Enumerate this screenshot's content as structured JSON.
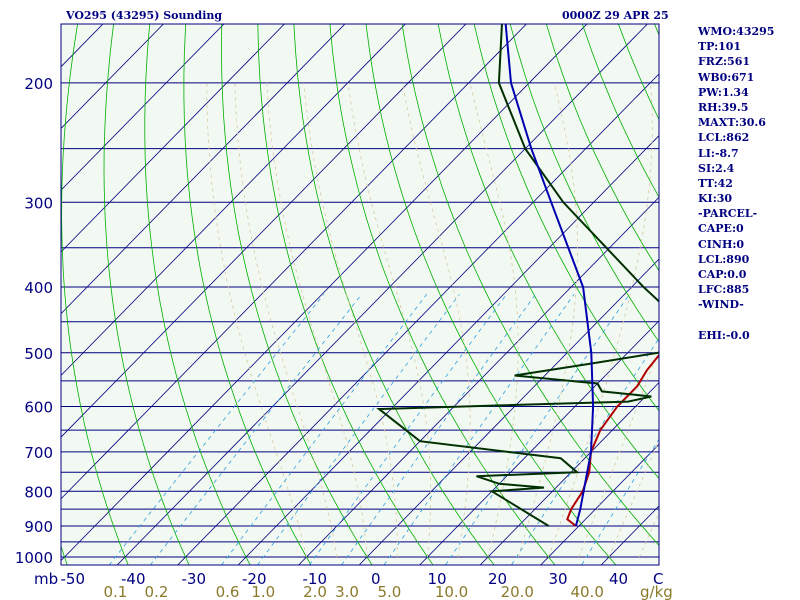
{
  "header": {
    "title": "VO295 (43295) Sounding",
    "timestamp": "0000Z 29 APR 25"
  },
  "stats": [
    "WMO:43295",
    "TP:101",
    "FRZ:561",
    "WB0:671",
    "PW:1.34",
    "RH:39.5",
    "MAXT:30.6",
    "LCL:862",
    "LI:-8.7",
    "SI:2.4",
    "TT:42",
    "KI:30",
    "-PARCEL-",
    "CAPE:0",
    "CINH:0",
    "LCL:890",
    "CAP:0.0",
    "LFC:885",
    "-WIND-",
    "",
    "EHI:-0.0"
  ],
  "colors": {
    "background": "#f2f8f2",
    "isobar": "#000080",
    "isotherm": "#000080",
    "dry_adiabat": "#00b000",
    "moist_adiabat": "#d8c8a0",
    "mixing_ratio": "#30a0e0",
    "temperature": "#b00000",
    "dewpoint": "#003000",
    "parcel": "#0000b0"
  },
  "chart_data": {
    "type": "skew-t log-p",
    "pressure_unit": "mb",
    "pressure_range": [
      1000,
      100
    ],
    "pressure_ticks": [
      "100",
      "200",
      "300",
      "400",
      "500",
      "600",
      "700",
      "800",
      "900",
      "1000"
    ],
    "temperature_unit": "C",
    "temperature_ticks": [
      "-50",
      "-40",
      "-30",
      "-20",
      "-10",
      "0",
      "10",
      "20",
      "30",
      "40"
    ],
    "mixing_ratio_unit": "g/kg",
    "mixing_ratio_ticks": [
      "0.1",
      "0.2",
      "0.6",
      "1.0",
      "2.0",
      "3.0",
      "5.0",
      "10.0",
      "20.0",
      "40.0"
    ],
    "series": [
      {
        "role": "temperature",
        "points": [
          {
            "p": 900,
            "t": 29.5
          },
          {
            "p": 880,
            "t": 27
          },
          {
            "p": 850,
            "t": 26
          },
          {
            "p": 800,
            "t": 25
          },
          {
            "p": 750,
            "t": 23
          },
          {
            "p": 700,
            "t": 20
          },
          {
            "p": 650,
            "t": 18
          },
          {
            "p": 600,
            "t": 17
          },
          {
            "p": 560,
            "t": 17
          },
          {
            "p": 530,
            "t": 16
          },
          {
            "p": 500,
            "t": 15.5
          },
          {
            "p": 470,
            "t": 16
          }
        ]
      },
      {
        "role": "dewpoint",
        "points": [
          {
            "p": 900,
            "t": 25
          },
          {
            "p": 800,
            "t": 10
          },
          {
            "p": 790,
            "t": 18
          },
          {
            "p": 780,
            "t": 10
          },
          {
            "p": 760,
            "t": 5
          },
          {
            "p": 750,
            "t": 21
          },
          {
            "p": 715,
            "t": 16
          },
          {
            "p": 675,
            "t": -10
          },
          {
            "p": 605,
            "t": -22
          },
          {
            "p": 590,
            "t": 18
          },
          {
            "p": 580,
            "t": 21
          },
          {
            "p": 570,
            "t": 12
          },
          {
            "p": 555,
            "t": 10
          },
          {
            "p": 540,
            "t": -5
          },
          {
            "p": 520,
            "t": 5
          },
          {
            "p": 500,
            "t": 15
          },
          {
            "p": 470,
            "t": 19
          },
          {
            "p": 460,
            "t": 16
          },
          {
            "p": 400,
            "t": 2
          },
          {
            "p": 300,
            "t": -25
          },
          {
            "p": 250,
            "t": -40
          },
          {
            "p": 200,
            "t": -55
          },
          {
            "p": 150,
            "t": -68
          },
          {
            "p": 110,
            "t": -82
          },
          {
            "p": 100,
            "t": -85
          }
        ]
      },
      {
        "role": "parcel",
        "points": [
          {
            "p": 900,
            "t": 29.5
          },
          {
            "p": 850,
            "t": 27.5
          },
          {
            "p": 700,
            "t": 20
          },
          {
            "p": 600,
            "t": 13
          },
          {
            "p": 500,
            "t": 4
          },
          {
            "p": 400,
            "t": -8
          },
          {
            "p": 300,
            "t": -27
          },
          {
            "p": 250,
            "t": -39
          },
          {
            "p": 200,
            "t": -53
          },
          {
            "p": 150,
            "t": -68
          },
          {
            "p": 110,
            "t": -80
          }
        ]
      }
    ]
  }
}
